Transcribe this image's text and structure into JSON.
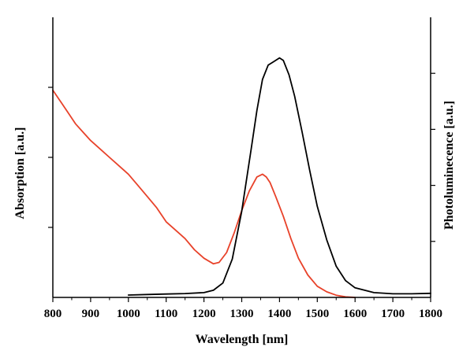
{
  "chart_data": {
    "type": "line",
    "title": "",
    "xlabel": "Wavelength [nm]",
    "ylabel_left": "Absorption [a.u.]",
    "ylabel_right": "Photoluminecence [a.u.]",
    "xlim": [
      800,
      1800
    ],
    "x_ticks": [
      800,
      900,
      1000,
      1100,
      1200,
      1300,
      1400,
      1500,
      1600,
      1700,
      1800
    ],
    "ylim_left": [
      0,
      1
    ],
    "ylim_right": [
      0,
      1
    ],
    "grid": false,
    "legend": "none",
    "series": [
      {
        "axis": "left",
        "color": "#e8422a",
        "x": [
          800,
          820,
          840,
          860,
          880,
          900,
          925,
          950,
          975,
          1000,
          1025,
          1050,
          1075,
          1100,
          1125,
          1150,
          1175,
          1200,
          1225,
          1240,
          1260,
          1280,
          1300,
          1320,
          1340,
          1355,
          1365,
          1375,
          1390,
          1410,
          1430,
          1450,
          1475,
          1500,
          1525,
          1550,
          1575,
          1600
        ],
        "y": [
          0.74,
          0.7,
          0.66,
          0.62,
          0.59,
          0.56,
          0.53,
          0.5,
          0.47,
          0.44,
          0.4,
          0.36,
          0.32,
          0.27,
          0.24,
          0.21,
          0.17,
          0.14,
          0.12,
          0.125,
          0.16,
          0.23,
          0.31,
          0.38,
          0.43,
          0.44,
          0.43,
          0.41,
          0.36,
          0.29,
          0.21,
          0.14,
          0.08,
          0.04,
          0.02,
          0.008,
          0.002,
          0.0
        ]
      },
      {
        "axis": "right",
        "color": "#000000",
        "x": [
          1000,
          1050,
          1100,
          1150,
          1200,
          1225,
          1250,
          1275,
          1300,
          1325,
          1340,
          1355,
          1370,
          1385,
          1400,
          1410,
          1425,
          1440,
          1460,
          1480,
          1500,
          1525,
          1550,
          1575,
          1600,
          1650,
          1700,
          1750,
          1800
        ],
        "y": [
          0.01,
          0.012,
          0.014,
          0.016,
          0.02,
          0.03,
          0.06,
          0.16,
          0.36,
          0.62,
          0.78,
          0.91,
          0.97,
          0.985,
          1.0,
          0.99,
          0.93,
          0.84,
          0.69,
          0.53,
          0.38,
          0.24,
          0.13,
          0.07,
          0.04,
          0.02,
          0.015,
          0.015,
          0.017
        ]
      }
    ]
  }
}
